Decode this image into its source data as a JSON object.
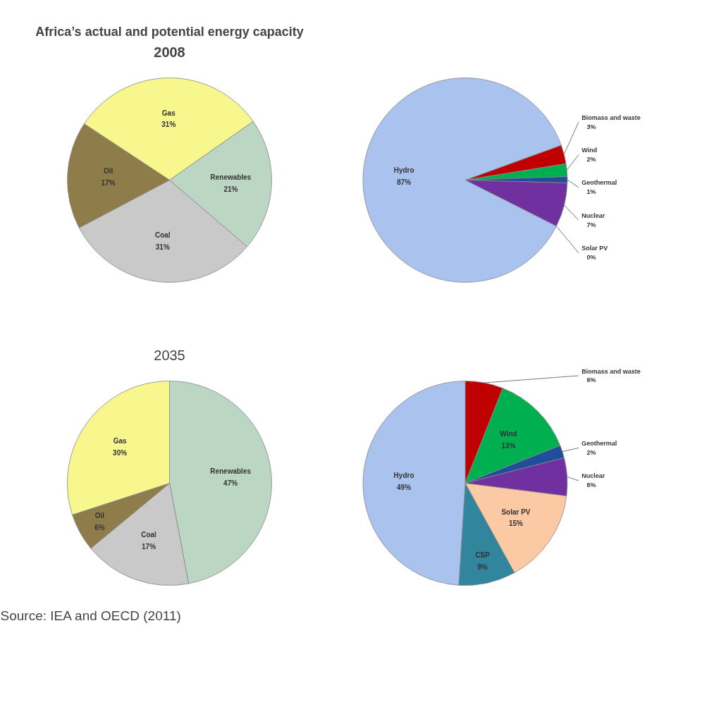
{
  "chart_data": [
    {
      "type": "pie",
      "title": "Africa’s actual and potential energy capacity",
      "subtitle": "2008",
      "categories": [
        "Gas",
        "Renewables",
        "Coal",
        "Oil"
      ],
      "values": [
        31,
        21,
        31,
        17
      ],
      "colors": [
        "#f7f78e",
        "#bcd6c4",
        "#c9c9c9",
        "#8e7d4a"
      ],
      "value_labels": [
        "31%",
        "21%",
        "31%",
        "17%"
      ]
    },
    {
      "type": "pie",
      "categories": [
        "Biomass and waste",
        "Wind",
        "Geothermal",
        "Nuclear",
        "Solar PV",
        "Hydro"
      ],
      "values": [
        3,
        2,
        1,
        7,
        0,
        87
      ],
      "colors": [
        "#c00000",
        "#00b050",
        "#1f4e9a",
        "#7030a0",
        "#fcc9a5",
        "#aac2ee"
      ],
      "value_labels": [
        "3%",
        "2%",
        "1%",
        "7%",
        "0%",
        "87%"
      ]
    },
    {
      "type": "pie",
      "subtitle": "2035",
      "categories": [
        "Renewables",
        "Coal",
        "Oil",
        "Gas"
      ],
      "values": [
        47,
        17,
        6,
        30
      ],
      "colors": [
        "#bcd6c4",
        "#c9c9c9",
        "#8e7d4a",
        "#f7f78e"
      ],
      "value_labels": [
        "47%",
        "17%",
        "6%",
        "30%"
      ],
      "annotations": [
        "Source: IEA and OECD (2011)"
      ]
    },
    {
      "type": "pie",
      "categories": [
        "Biomass and waste",
        "Wind",
        "Geothermal",
        "Nuclear",
        "Solar PV",
        "CSP",
        "Hydro"
      ],
      "values": [
        6,
        13,
        2,
        6,
        15,
        9,
        49
      ],
      "colors": [
        "#c00000",
        "#00b050",
        "#1f4e9a",
        "#7030a0",
        "#fcc9a5",
        "#31859c",
        "#aac2ee"
      ],
      "value_labels": [
        "6%",
        "13%",
        "2%",
        "6%",
        "15%",
        "9%",
        "49%"
      ]
    }
  ]
}
